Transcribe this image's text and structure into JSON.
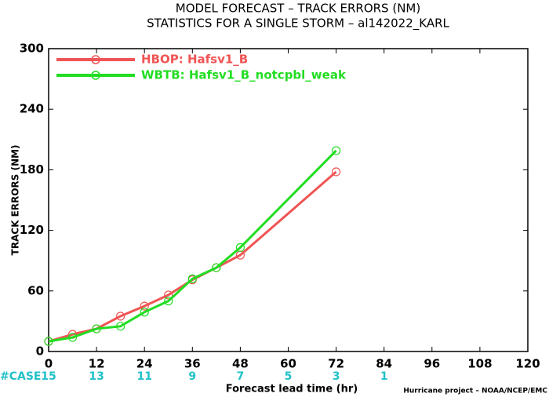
{
  "chart_data": {
    "type": "line",
    "title": "MODEL FORECAST – TRACK ERRORS (NM)",
    "subtitle": "STATISTICS FOR A SINGLE STORM – al142022_KARL",
    "x_label": "Forecast lead time (hr)",
    "y_label": "TRACK ERRORS (NM)",
    "footer": "Hurricane project – NOAA/NCEP/EMC",
    "xlim": [
      0,
      120
    ],
    "xticks": [
      0,
      12,
      24,
      36,
      48,
      60,
      72,
      84,
      96,
      108,
      120
    ],
    "ylim": [
      0,
      300
    ],
    "yticks": [
      0,
      60,
      120,
      180,
      240,
      300
    ],
    "legend": "upper left",
    "series": [
      {
        "name": "HBOP: Hafsv1_B",
        "color": "#f05454",
        "x": [
          0,
          6,
          12,
          18,
          24,
          30,
          36,
          42,
          48,
          72
        ],
        "values": [
          10,
          17,
          22.5,
          35,
          45,
          56,
          71,
          83,
          95.5,
          178
        ]
      },
      {
        "name": "WBTB: Hafsv1_B_notcpbl_weak",
        "color": "#22dd22",
        "x": [
          0,
          6,
          12,
          18,
          24,
          30,
          36,
          42,
          48,
          72
        ],
        "values": [
          10,
          14,
          22.5,
          25,
          39,
          50,
          72,
          83,
          103,
          199
        ]
      }
    ],
    "cases": {
      "label": "#CASE",
      "color": "#22c0c8",
      "x": [
        0,
        12,
        24,
        36,
        48,
        60,
        72,
        84
      ],
      "values": [
        15,
        13,
        11,
        9,
        7,
        5,
        3,
        1
      ]
    }
  }
}
